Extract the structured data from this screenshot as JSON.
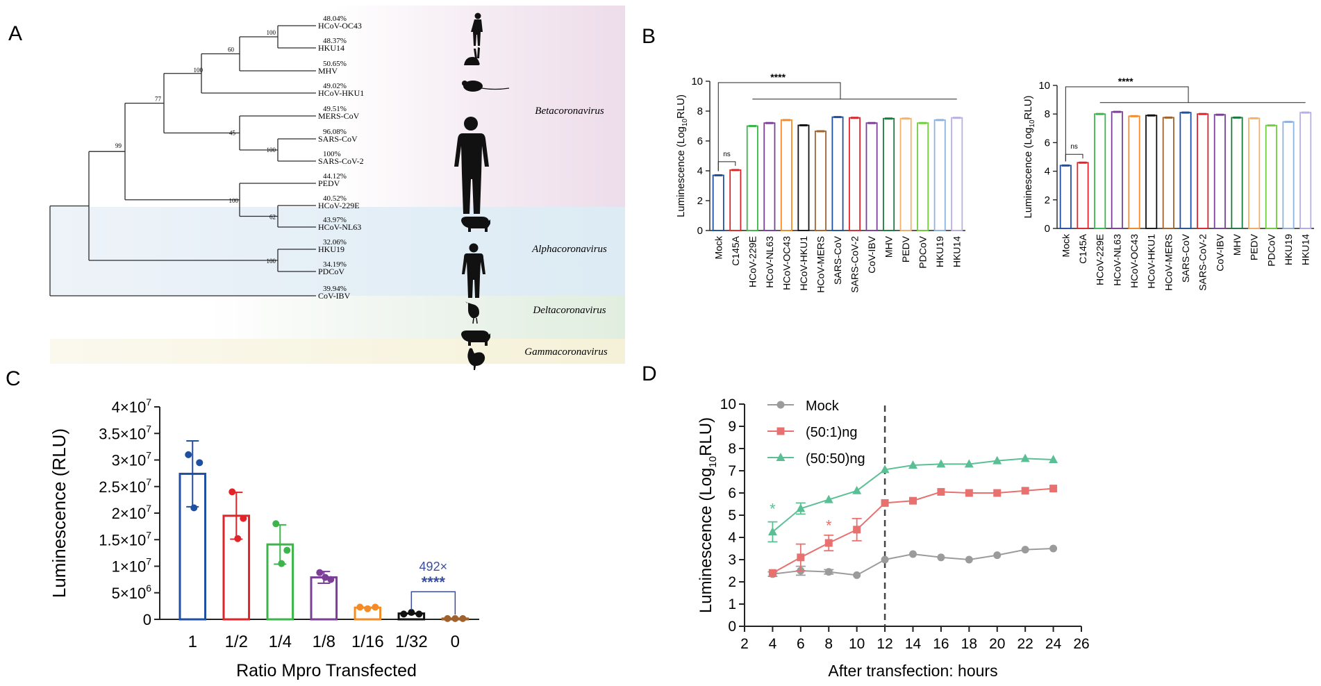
{
  "panel_labels": {
    "a": "A",
    "b": "B",
    "c": "C",
    "d": "D"
  },
  "colors": {
    "beta_bg": "#f1e6ef",
    "alpha_bg": "#e4eef5",
    "delta_bg": "#e9f1e6",
    "gamma_bg": "#f8f5e2",
    "blue": "#1f4fa0",
    "red": "#e0242a",
    "green": "#3cb64a",
    "purple": "#7b3f98",
    "orange": "#f28c28",
    "black": "#111111",
    "brown": "#a0622d",
    "mock_gray": "#9b9b9b",
    "pink": "#e8706e",
    "teal": "#5bbf95"
  },
  "chart_data": [
    {
      "type": "tree",
      "panel": "A",
      "taxa": [
        {
          "name": "HCoV-OC43",
          "percent": "48.04%",
          "silhouette": "human-icon"
        },
        {
          "name": "HKU14",
          "percent": "48.37%",
          "silhouette": "rabbit-icon"
        },
        {
          "name": "MHV",
          "percent": "50.65%",
          "silhouette": "mouse-icon"
        },
        {
          "name": "HCoV-HKU1",
          "percent": "49.02%",
          "silhouette": ""
        },
        {
          "name": "MERS-CoV",
          "percent": "49.51%",
          "silhouette": "human-icon"
        },
        {
          "name": "SARS-CoV",
          "percent": "96.08%",
          "silhouette": ""
        },
        {
          "name": "SARS-CoV-2",
          "percent": "100%",
          "silhouette": ""
        },
        {
          "name": "PEDV",
          "percent": "44.12%",
          "silhouette": "pig-icon"
        },
        {
          "name": "HCoV-229E",
          "percent": "40.52%",
          "silhouette": "human-icon"
        },
        {
          "name": "HCoV-NL63",
          "percent": "43.97%",
          "silhouette": ""
        },
        {
          "name": "HKU19",
          "percent": "32.06%",
          "silhouette": "bird-icon"
        },
        {
          "name": "PDCoV",
          "percent": "34.19%",
          "silhouette": "pig-icon"
        },
        {
          "name": "CoV-IBV",
          "percent": "39.94%",
          "silhouette": "chicken-icon"
        }
      ],
      "bootstrap": [
        "100",
        "60",
        "100",
        "77",
        "45",
        "100",
        "99",
        "100",
        "62",
        "100"
      ],
      "genera": [
        "Betacoronavirus",
        "Alphacoronavirus",
        "Deltacoronavirus",
        "Gammacoronavirus"
      ]
    },
    {
      "type": "bar",
      "panel": "B-left",
      "ylabel_main": "Luminescence (Log",
      "ylabel_sub": "10",
      "ylabel_tail": "RLU)",
      "ylim": [
        0,
        10
      ],
      "yticks": [
        "0",
        "2",
        "4",
        "6",
        "8",
        "10"
      ],
      "categories": [
        "Mock",
        "C145A",
        "HCoV-229E",
        "HCoV-NL63",
        "HCoV-OC43",
        "HCoV-HKU1",
        "HCoV-MERS",
        "SARS-CoV",
        "SARS-CoV-2",
        "CoV-IBV",
        "MHV",
        "PEDV",
        "PDCoV",
        "HKU19",
        "HKU14"
      ],
      "values": [
        3.7,
        4.05,
        7.0,
        7.2,
        7.4,
        7.05,
        6.65,
        7.6,
        7.55,
        7.2,
        7.5,
        7.5,
        7.2,
        7.4,
        7.55
      ],
      "bar_colors": [
        "#1f4fa0",
        "#e0242a",
        "#3cb64a",
        "#7b3f98",
        "#f28c28",
        "#111111",
        "#a0622d",
        "#1f4fa0",
        "#e0242a",
        "#7b3f98",
        "#1a7a3a",
        "#f5b06a",
        "#6fcf3a",
        "#8fb3e0",
        "#b9aee6"
      ],
      "annotation_ns": "ns",
      "annotation_sig": "****"
    },
    {
      "type": "bar",
      "panel": "B-right",
      "ylim": [
        0,
        10
      ],
      "yticks": [
        "0",
        "2",
        "4",
        "6",
        "8",
        "10"
      ],
      "ylabel_main": "Luminescence (Log",
      "ylabel_sub": "10",
      "ylabel_tail": "RLU)",
      "categories": [
        "Mock",
        "C145A",
        "HCoV-229E",
        "HCoV-NL63",
        "HCoV-OC43",
        "HCoV-HKU1",
        "HCoV-MERS",
        "SARS-CoV",
        "SARS-CoV-2",
        "CoV-IBV",
        "MHV",
        "PEDV",
        "PDCoV",
        "HKU19",
        "HKU14"
      ],
      "values": [
        4.4,
        4.6,
        8.0,
        8.15,
        7.85,
        7.9,
        7.75,
        8.1,
        8.0,
        7.95,
        7.75,
        7.7,
        7.2,
        7.45,
        8.1
      ],
      "bar_colors": [
        "#1f4fa0",
        "#e0242a",
        "#3cb64a",
        "#7b3f98",
        "#f28c28",
        "#111111",
        "#a0622d",
        "#1f4fa0",
        "#e0242a",
        "#7b3f98",
        "#1a7a3a",
        "#f5b06a",
        "#6fcf3a",
        "#8fb3e0",
        "#b9aee6"
      ],
      "annotation_ns": "ns",
      "annotation_sig": "****"
    },
    {
      "type": "bar",
      "panel": "C",
      "xlabel": "Ratio Mpro Transfected",
      "ylabel": "Luminescence (RLU)",
      "ylim": [
        0,
        40000000
      ],
      "yticks": [
        {
          "value": 0,
          "base": "0",
          "exp": ""
        },
        {
          "value": 5000000,
          "base": "5×10",
          "exp": "6"
        },
        {
          "value": 10000000,
          "base": "1×10",
          "exp": "7"
        },
        {
          "value": 15000000,
          "base": "1.5×10",
          "exp": "7"
        },
        {
          "value": 20000000,
          "base": "2×10",
          "exp": "7"
        },
        {
          "value": 25000000,
          "base": "2.5×10",
          "exp": "7"
        },
        {
          "value": 30000000,
          "base": "3×10",
          "exp": "7"
        },
        {
          "value": 35000000,
          "base": "3.5×10",
          "exp": "7"
        },
        {
          "value": 40000000,
          "base": "4×10",
          "exp": "7"
        }
      ],
      "categories": [
        "1",
        "1/2",
        "1/4",
        "1/8",
        "1/16",
        "1/32",
        "0"
      ],
      "values": [
        27400000,
        19500000,
        14100000,
        7900000,
        2200000,
        1100000,
        150000
      ],
      "errors": [
        6200000,
        4400000,
        3700000,
        1100000,
        0,
        0,
        0
      ],
      "points": [
        [
          31000000,
          29500000,
          21000000
        ],
        [
          24000000,
          19000000,
          15200000
        ],
        [
          18000000,
          13000000,
          10500000
        ],
        [
          8800000,
          7500000,
          7900000
        ],
        [
          2300000,
          2000000,
          2300000
        ],
        [
          1000000,
          1300000,
          1000000
        ],
        [
          150000,
          150000,
          150000
        ]
      ],
      "bar_colors": [
        "#1f4fa0",
        "#e0242a",
        "#3cb64a",
        "#7b3f98",
        "#f28c28",
        "#111111",
        "#a0622d"
      ],
      "annotation_fold": "492×",
      "annotation_sig": "****"
    },
    {
      "type": "line",
      "panel": "D",
      "xlabel": "After transfection: hours",
      "ylabel_main": "Luminescence (Log",
      "ylabel_sub": "10",
      "ylabel_tail": "RLU)",
      "xlim": [
        2,
        26
      ],
      "ylim": [
        0,
        10
      ],
      "xticks": [
        "2",
        "4",
        "6",
        "8",
        "10",
        "12",
        "14",
        "16",
        "18",
        "20",
        "22",
        "24",
        "26"
      ],
      "yticks": [
        "0",
        "1",
        "2",
        "3",
        "4",
        "5",
        "6",
        "7",
        "8",
        "9",
        "10"
      ],
      "x": [
        4,
        6,
        8,
        10,
        12,
        14,
        16,
        18,
        20,
        22,
        24
      ],
      "series": [
        {
          "name": "Mock",
          "color": "#9b9b9b",
          "marker": "circle",
          "values": [
            2.35,
            2.5,
            2.45,
            2.3,
            3.0,
            3.25,
            3.1,
            3.0,
            3.2,
            3.45,
            3.5
          ],
          "errors": [
            0.1,
            0.2,
            0.1,
            0,
            0,
            0,
            0,
            0,
            0,
            0,
            0
          ]
        },
        {
          "name": "(50:1)ng",
          "color": "#e8706e",
          "marker": "square",
          "values": [
            2.4,
            3.1,
            3.75,
            4.35,
            5.55,
            5.65,
            6.05,
            6.0,
            6.0,
            6.1,
            6.2
          ],
          "errors": [
            0,
            0.6,
            0.35,
            0.5,
            0,
            0,
            0,
            0,
            0,
            0,
            0
          ]
        },
        {
          "name": "(50:50)ng",
          "color": "#5bbf95",
          "marker": "triangle",
          "values": [
            4.25,
            5.3,
            5.7,
            6.1,
            7.05,
            7.25,
            7.3,
            7.3,
            7.45,
            7.55,
            7.5
          ],
          "errors": [
            0.45,
            0.25,
            0,
            0,
            0,
            0,
            0,
            0,
            0,
            0,
            0
          ]
        }
      ],
      "vline_x": 12,
      "star_teal": "*",
      "star_red": "*"
    }
  ]
}
